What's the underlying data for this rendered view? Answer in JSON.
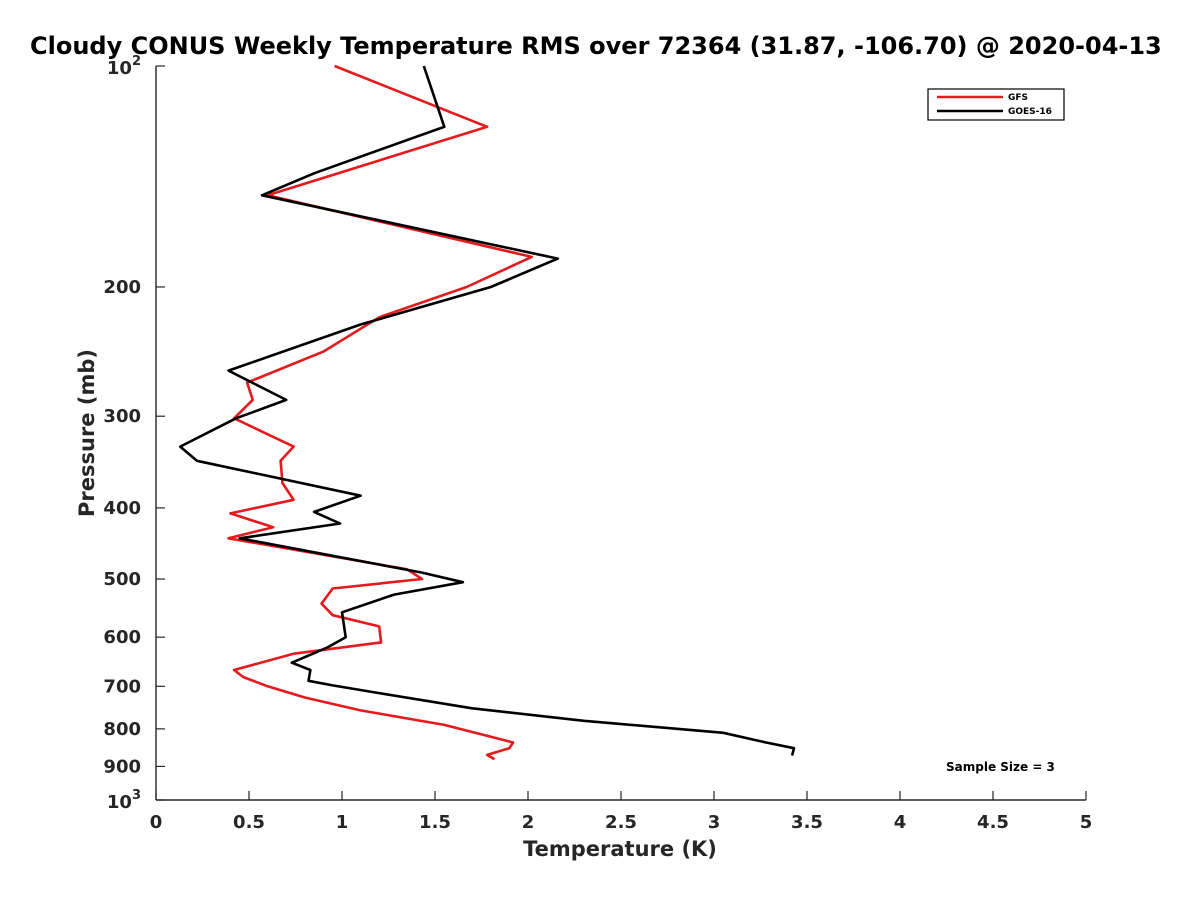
{
  "chart_data": {
    "type": "line",
    "title": "Cloudy CONUS Weekly Temperature RMS over 72364 (31.87, -106.70) @ 2020-04-13",
    "xlabel": "Temperature (K)",
    "ylabel": "Pressure (mb)",
    "xlim": [
      0,
      5
    ],
    "ylim": [
      100,
      1000
    ],
    "y_scale": "log",
    "y_reversed": true,
    "grid": false,
    "legend_position": "top-right",
    "x_ticks": [
      {
        "value": 0,
        "label": "0"
      },
      {
        "value": 0.5,
        "label": "0.5"
      },
      {
        "value": 1,
        "label": "1"
      },
      {
        "value": 1.5,
        "label": "1.5"
      },
      {
        "value": 2,
        "label": "2"
      },
      {
        "value": 2.5,
        "label": "2.5"
      },
      {
        "value": 3,
        "label": "3"
      },
      {
        "value": 3.5,
        "label": "3.5"
      },
      {
        "value": 4,
        "label": "4"
      },
      {
        "value": 4.5,
        "label": "4.5"
      },
      {
        "value": 5,
        "label": "5"
      }
    ],
    "y_ticks": [
      {
        "value": 100,
        "base": "10",
        "exp": "2"
      },
      {
        "value": 200,
        "label": "200"
      },
      {
        "value": 300,
        "label": "300"
      },
      {
        "value": 400,
        "label": "400"
      },
      {
        "value": 500,
        "label": "500"
      },
      {
        "value": 600,
        "label": "600"
      },
      {
        "value": 700,
        "label": "700"
      },
      {
        "value": 800,
        "label": "800"
      },
      {
        "value": 900,
        "label": "900"
      },
      {
        "value": 1000,
        "base": "10",
        "exp": "3"
      }
    ],
    "series": [
      {
        "name": "GFS",
        "color": "#e41a1c",
        "points": [
          [
            0.96,
            100
          ],
          [
            1.78,
            121
          ],
          [
            0.6,
            150
          ],
          [
            2.02,
            182
          ],
          [
            1.67,
            200
          ],
          [
            1.2,
            220
          ],
          [
            0.9,
            245
          ],
          [
            0.49,
            270
          ],
          [
            0.52,
            285
          ],
          [
            0.42,
            302
          ],
          [
            0.74,
            330
          ],
          [
            0.67,
            345
          ],
          [
            0.68,
            370
          ],
          [
            0.74,
            390
          ],
          [
            0.4,
            407
          ],
          [
            0.63,
            425
          ],
          [
            0.39,
            440
          ],
          [
            1.35,
            485
          ],
          [
            1.43,
            500
          ],
          [
            0.95,
            515
          ],
          [
            0.89,
            540
          ],
          [
            0.95,
            560
          ],
          [
            1.2,
            580
          ],
          [
            1.21,
            610
          ],
          [
            0.74,
            632
          ],
          [
            0.42,
            665
          ],
          [
            0.47,
            680
          ],
          [
            0.6,
            700
          ],
          [
            0.8,
            725
          ],
          [
            1.1,
            755
          ],
          [
            1.55,
            790
          ],
          [
            1.8,
            820
          ],
          [
            1.92,
            835
          ],
          [
            1.9,
            850
          ],
          [
            1.78,
            868
          ],
          [
            1.82,
            880
          ]
        ]
      },
      {
        "name": "GOES-16",
        "color": "#000000",
        "points": [
          [
            1.44,
            100
          ],
          [
            1.55,
            121
          ],
          [
            0.85,
            140
          ],
          [
            0.57,
            150
          ],
          [
            2.16,
            183
          ],
          [
            1.8,
            200
          ],
          [
            1.1,
            225
          ],
          [
            0.39,
            260
          ],
          [
            0.7,
            285
          ],
          [
            0.43,
            302
          ],
          [
            0.13,
            330
          ],
          [
            0.22,
            345
          ],
          [
            1.1,
            385
          ],
          [
            0.85,
            405
          ],
          [
            0.99,
            420
          ],
          [
            0.45,
            440
          ],
          [
            1.43,
            490
          ],
          [
            1.65,
            505
          ],
          [
            1.28,
            525
          ],
          [
            1.0,
            555
          ],
          [
            1.02,
            600
          ],
          [
            0.92,
            620
          ],
          [
            0.73,
            650
          ],
          [
            0.83,
            665
          ],
          [
            0.82,
            688
          ],
          [
            0.95,
            698
          ],
          [
            1.2,
            715
          ],
          [
            1.7,
            750
          ],
          [
            2.3,
            780
          ],
          [
            3.05,
            810
          ],
          [
            3.28,
            835
          ],
          [
            3.43,
            850
          ],
          [
            3.42,
            870
          ]
        ]
      }
    ],
    "annotations": [
      {
        "text": "Sample Size = 3"
      }
    ]
  }
}
